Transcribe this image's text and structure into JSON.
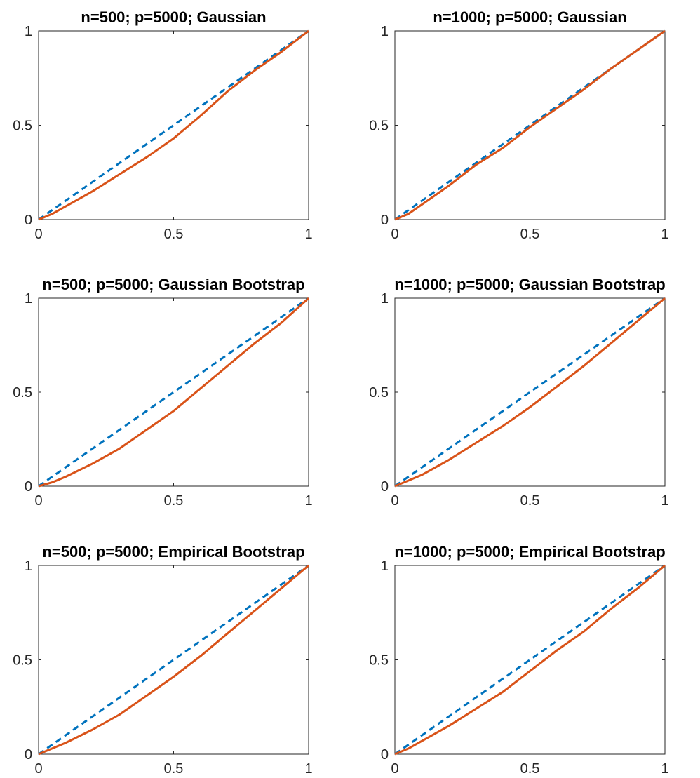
{
  "colors": {
    "reference": "#0072BD",
    "empirical": "#D95319",
    "axes": "#262626"
  },
  "chart_data": [
    {
      "type": "line",
      "title": "n=500; p=5000; Gaussian",
      "xlim": [
        0,
        1
      ],
      "ylim": [
        0,
        1
      ],
      "xticks": [
        "0",
        "0.5",
        "1"
      ],
      "yticks": [
        "0",
        "0.5",
        "1"
      ],
      "grid": false,
      "series": [
        {
          "style": "dashed",
          "x": [
            0,
            1
          ],
          "y": [
            0,
            1
          ]
        },
        {
          "style": "solid",
          "x": [
            0,
            0.05,
            0.1,
            0.2,
            0.3,
            0.4,
            0.5,
            0.6,
            0.7,
            0.8,
            0.9,
            1.0
          ],
          "y": [
            0,
            0.03,
            0.07,
            0.15,
            0.24,
            0.33,
            0.43,
            0.55,
            0.68,
            0.79,
            0.89,
            1.0
          ]
        }
      ]
    },
    {
      "type": "line",
      "title": "n=1000; p=5000; Gaussian",
      "xlim": [
        0,
        1
      ],
      "ylim": [
        0,
        1
      ],
      "xticks": [
        "0",
        "0.5",
        "1"
      ],
      "yticks": [
        "0",
        "0.5",
        "1"
      ],
      "grid": false,
      "series": [
        {
          "style": "dashed",
          "x": [
            0,
            1
          ],
          "y": [
            0,
            1
          ]
        },
        {
          "style": "solid",
          "x": [
            0,
            0.05,
            0.1,
            0.2,
            0.3,
            0.4,
            0.5,
            0.6,
            0.7,
            0.8,
            0.9,
            1.0
          ],
          "y": [
            0,
            0.03,
            0.08,
            0.18,
            0.29,
            0.38,
            0.49,
            0.59,
            0.69,
            0.8,
            0.9,
            1.0
          ]
        }
      ]
    },
    {
      "type": "line",
      "title": "n=500; p=5000; Gaussian Bootstrap",
      "xlim": [
        0,
        1
      ],
      "ylim": [
        0,
        1
      ],
      "xticks": [
        "0",
        "0.5",
        "1"
      ],
      "yticks": [
        "0",
        "0.5",
        "1"
      ],
      "grid": false,
      "series": [
        {
          "style": "dashed",
          "x": [
            0,
            1
          ],
          "y": [
            0,
            1
          ]
        },
        {
          "style": "solid",
          "x": [
            0,
            0.05,
            0.1,
            0.2,
            0.3,
            0.4,
            0.5,
            0.6,
            0.7,
            0.8,
            0.9,
            1.0
          ],
          "y": [
            0,
            0.02,
            0.05,
            0.12,
            0.2,
            0.3,
            0.4,
            0.52,
            0.64,
            0.76,
            0.87,
            1.0
          ]
        }
      ]
    },
    {
      "type": "line",
      "title": "n=1000; p=5000; Gaussian Bootstrap",
      "xlim": [
        0,
        1
      ],
      "ylim": [
        0,
        1
      ],
      "xticks": [
        "0",
        "0.5",
        "1"
      ],
      "yticks": [
        "0",
        "0.5",
        "1"
      ],
      "grid": false,
      "series": [
        {
          "style": "dashed",
          "x": [
            0,
            1
          ],
          "y": [
            0,
            1
          ]
        },
        {
          "style": "solid",
          "x": [
            0,
            0.05,
            0.1,
            0.2,
            0.3,
            0.4,
            0.5,
            0.6,
            0.7,
            0.8,
            0.9,
            1.0
          ],
          "y": [
            0,
            0.03,
            0.06,
            0.14,
            0.23,
            0.32,
            0.42,
            0.53,
            0.64,
            0.76,
            0.88,
            1.0
          ]
        }
      ]
    },
    {
      "type": "line",
      "title": "n=500; p=5000; Empirical Bootstrap",
      "xlim": [
        0,
        1
      ],
      "ylim": [
        0,
        1
      ],
      "xticks": [
        "0",
        "0.5",
        "1"
      ],
      "yticks": [
        "0",
        "0.5",
        "1"
      ],
      "grid": false,
      "series": [
        {
          "style": "dashed",
          "x": [
            0,
            1
          ],
          "y": [
            0,
            1
          ]
        },
        {
          "style": "solid",
          "x": [
            0,
            0.05,
            0.1,
            0.2,
            0.3,
            0.4,
            0.5,
            0.6,
            0.7,
            0.8,
            0.9,
            1.0
          ],
          "y": [
            0,
            0.03,
            0.06,
            0.13,
            0.21,
            0.31,
            0.41,
            0.52,
            0.64,
            0.76,
            0.88,
            1.0
          ]
        }
      ]
    },
    {
      "type": "line",
      "title": "n=1000; p=5000; Empirical Bootstrap",
      "xlim": [
        0,
        1
      ],
      "ylim": [
        0,
        1
      ],
      "xticks": [
        "0",
        "0.5",
        "1"
      ],
      "yticks": [
        "0",
        "0.5",
        "1"
      ],
      "grid": false,
      "series": [
        {
          "style": "dashed",
          "x": [
            0,
            1
          ],
          "y": [
            0,
            1
          ]
        },
        {
          "style": "solid",
          "x": [
            0,
            0.05,
            0.1,
            0.2,
            0.3,
            0.4,
            0.5,
            0.6,
            0.7,
            0.8,
            0.9,
            1.0
          ],
          "y": [
            0,
            0.03,
            0.07,
            0.15,
            0.24,
            0.33,
            0.44,
            0.55,
            0.65,
            0.77,
            0.88,
            1.0
          ]
        }
      ]
    }
  ]
}
